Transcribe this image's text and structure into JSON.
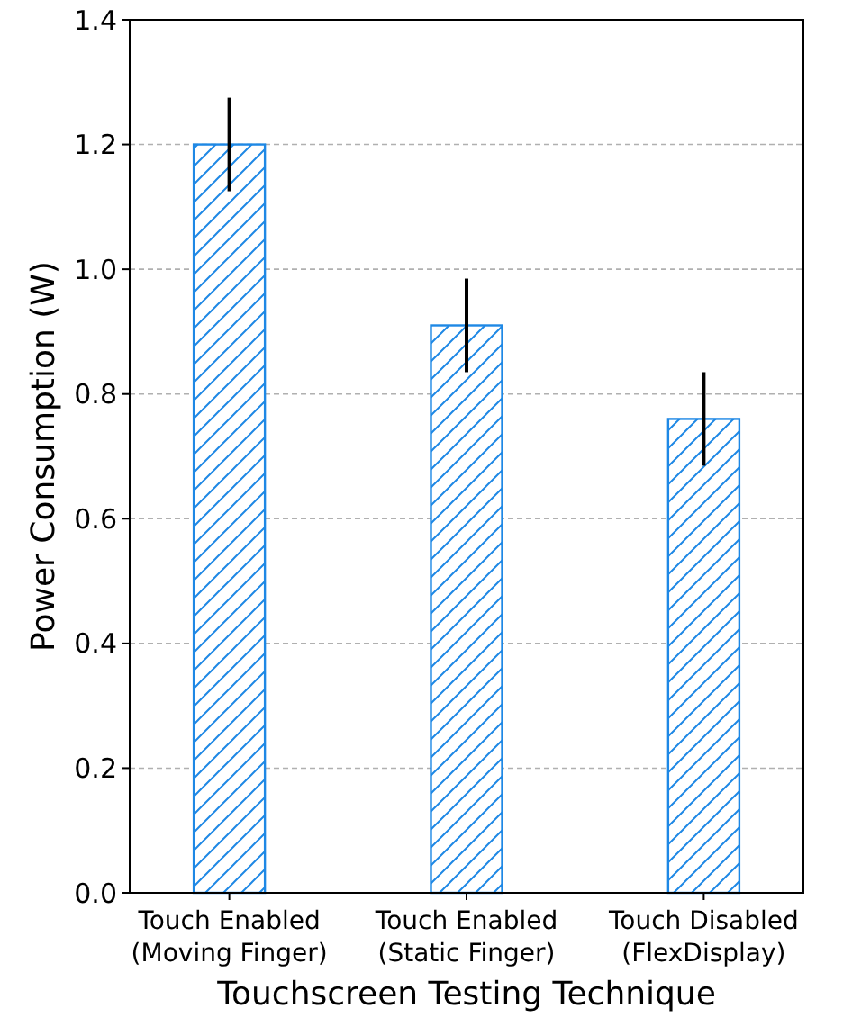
{
  "chart_data": {
    "type": "bar",
    "xlabel": "Touchscreen Testing Technique",
    "ylabel": "Power Consumption (W)",
    "categories": [
      "Touch Enabled\n(Moving Finger)",
      "Touch Enabled\n(Static Finger)",
      "Touch Disabled\n(FlexDisplay)"
    ],
    "values": [
      1.2,
      0.91,
      0.76
    ],
    "errors": [
      0.075,
      0.075,
      0.075
    ],
    "color": "#1e88e5",
    "ylim": [
      0,
      1.4
    ],
    "yticks": [
      {
        "value": 0,
        "label": "0.0"
      },
      0.2,
      0.4,
      0.6,
      0.8,
      {
        "value": 1,
        "label": "1.0"
      },
      1.2,
      1.4
    ],
    "grid": "y"
  }
}
